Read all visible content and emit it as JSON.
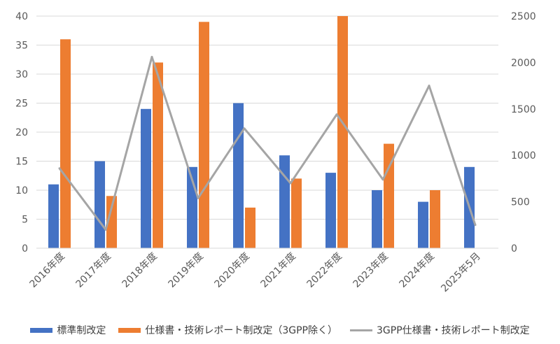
{
  "chart_data": {
    "type": "bar",
    "categories": [
      "2016年度",
      "2017年度",
      "2018年度",
      "2019年度",
      "2020年度",
      "2021年度",
      "2022年度",
      "2023年度",
      "2024年度",
      "2025年5月"
    ],
    "series": [
      {
        "name": "標準制改定",
        "type": "bar",
        "axis": "left",
        "color": "#4472C4",
        "values": [
          11,
          15,
          24,
          14,
          25,
          16,
          13,
          10,
          8,
          14
        ]
      },
      {
        "name": "仕様書・技術レポート制改定（3GPP除く）",
        "type": "bar",
        "axis": "left",
        "color": "#ED7D31",
        "values": [
          36,
          9,
          32,
          39,
          7,
          12,
          40,
          18,
          10,
          null
        ]
      },
      {
        "name": "3GPP仕様書・技術レポート制改定",
        "type": "line",
        "axis": "right",
        "color": "#A5A5A5",
        "values": [
          860,
          200,
          2060,
          540,
          1290,
          700,
          1440,
          740,
          1750,
          250
        ]
      }
    ],
    "y_left": {
      "min": 0,
      "max": 40,
      "ticks": [
        0,
        5,
        10,
        15,
        20,
        25,
        30,
        35,
        40
      ]
    },
    "y_right": {
      "min": 0,
      "max": 2500,
      "ticks": [
        0,
        500,
        1000,
        1500,
        2000,
        2500
      ]
    },
    "grid": true,
    "legend_position": "bottom",
    "title": "",
    "xlabel": "",
    "ylabel": ""
  },
  "legend": {
    "items": [
      {
        "label": "標準制改定",
        "color": "#4472C4"
      },
      {
        "label": "仕様書・技術レポート制改定（3GPP除く）",
        "color": "#ED7D31"
      },
      {
        "label": "3GPP仕様書・技術レポート制改定",
        "color": "#A5A5A5"
      }
    ]
  }
}
